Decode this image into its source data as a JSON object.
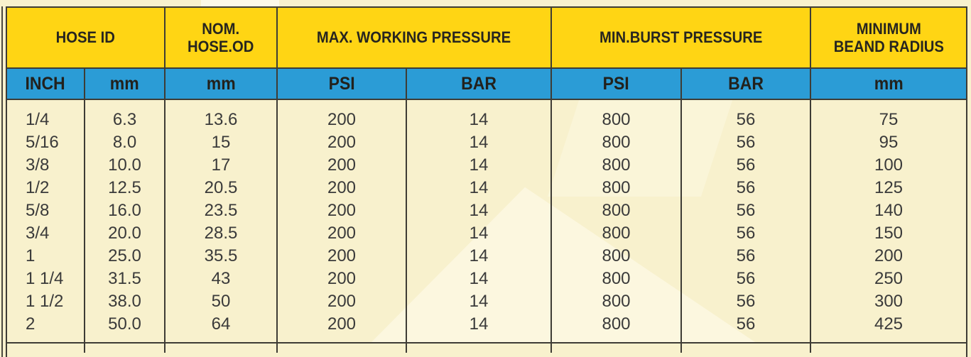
{
  "table": {
    "title": "hose specification table",
    "header": [
      {
        "id": "hose-id",
        "label": "HOSE ID",
        "span": 2
      },
      {
        "id": "nom-hose-od",
        "label": "NOM.\nHOSE.OD",
        "span": 1
      },
      {
        "id": "max-working-pressure",
        "label": "MAX. WORKING PRESSURE",
        "span": 2
      },
      {
        "id": "min-burst-pressure",
        "label": "MIN.BURST PRESSURE",
        "span": 2
      },
      {
        "id": "minimum-beand-radius",
        "label": "MINIMUM\nBEAND RADIUS",
        "span": 1
      }
    ],
    "units": [
      "INCH",
      "mm",
      "mm",
      "PSI",
      "BAR",
      "PSI",
      "BAR",
      "mm"
    ],
    "rows": [
      [
        "1/4",
        "6.3",
        "13.6",
        "200",
        "14",
        "800",
        "56",
        "75"
      ],
      [
        "5/16",
        "8.0",
        "15",
        "200",
        "14",
        "800",
        "56",
        "95"
      ],
      [
        "3/8",
        "10.0",
        "17",
        "200",
        "14",
        "800",
        "56",
        "100"
      ],
      [
        "1/2",
        "12.5",
        "20.5",
        "200",
        "14",
        "800",
        "56",
        "125"
      ],
      [
        "5/8",
        "16.0",
        "23.5",
        "200",
        "14",
        "800",
        "56",
        "140"
      ],
      [
        "3/4",
        "20.0",
        "28.5",
        "200",
        "14",
        "800",
        "56",
        "150"
      ],
      [
        "1",
        "25.0",
        "35.5",
        "200",
        "14",
        "800",
        "56",
        "200"
      ],
      [
        "1 1/4",
        "31.5",
        "43",
        "200",
        "14",
        "800",
        "56",
        "250"
      ],
      [
        "1 1/2",
        "38.0",
        "50",
        "200",
        "14",
        "800",
        "56",
        "300"
      ],
      [
        "2",
        "50.0",
        "64",
        "200",
        "14",
        "800",
        "56",
        "425"
      ]
    ],
    "colors": {
      "header_yellow": "#ffd514",
      "units_blue": "#2b9cd6",
      "page_cream": "#f8f1cd",
      "grid_border": "#3e3c35",
      "text_ink": "#27251f"
    }
  }
}
